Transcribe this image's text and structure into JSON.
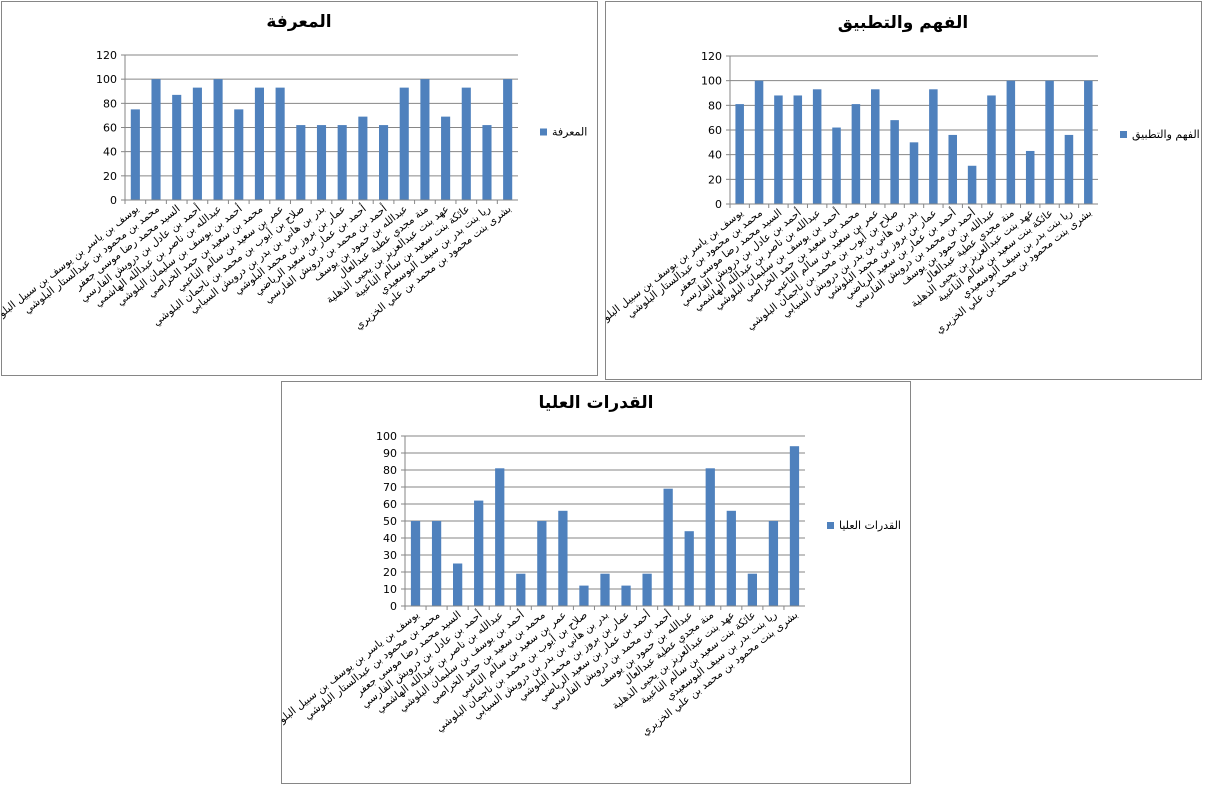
{
  "chart_data": [
    {
      "type": "bar",
      "title": "المعرفة",
      "categories": [
        "يوسف بن ياسر بن يوسف بن سبيل البلوشي",
        "محمد بن محمود بن عبدالستار البلوشي",
        "السيد محمد رضا موسى جعفر",
        "أحمد بن عادل بن درويش الفارسي",
        "عبدالله بن ناصر بن عبدالله الهاشمي",
        "أحمد بن يوسف بن سليمان البلوشي",
        "محمد بن سعيد بن حمد الخراصي",
        "عمر بن سعيد بن سالم الناعبي",
        "صلاح بن أيوب بن محمد بن ناجمان البلوشي",
        "بدر بن هاني بن بدر بن درويش السيابي",
        "عمار بن بروز بن محمد البلوشي",
        "أحمد بن عمار بن سعيد الرياضي",
        "أحمد بن محمد بن درويش الفارسي",
        "عبدالله بن حمود بن يوسف",
        "منة مجدي عطية عبدالعال",
        "عهد بنت عبدالعزيز بن يحيى الذهلية",
        "عائكة بنت سعيد بن سالم الناعبية",
        "ريا بنت بدر بن سيف البوسعيدي",
        "بشرى بنت محمود بن محمد بن علي الخزيري"
      ],
      "series": [
        {
          "name": "المعرفة",
          "color": "#4f81bd",
          "values": [
            75,
            100,
            87,
            93,
            100,
            75,
            93,
            93,
            62,
            62,
            62,
            69,
            62,
            93,
            100,
            69,
            93,
            62,
            100
          ]
        }
      ],
      "ylim": [
        0,
        120
      ],
      "yticks": [
        0,
        20,
        40,
        60,
        80,
        100,
        120
      ],
      "grid": true,
      "legend": "right"
    },
    {
      "type": "bar",
      "title": "الفهم والتطبيق",
      "categories": [
        "يوسف بن ياسر بن يوسف بن سبيل البلوشي",
        "محمد بن محمود بن عبدالستار البلوشي",
        "السيد محمد رضا موسى جعفر",
        "أحمد بن عادل بن درويش الفارسي",
        "عبدالله بن ناصر بن عبدالله الهاشمي",
        "أحمد بن يوسف بن سليمان البلوشي",
        "محمد بن سعيد بن حمد الخراصي",
        "عمر بن سعيد بن سالم الناعبي",
        "صلاح بن أيوب بن محمد بن ناجمان البلوشي",
        "بدر بن هاني بن بدر بن درويش السيابي",
        "عمار بن بروز بن محمد البلوشي",
        "أحمد بن عمار بن سعيد الرياضي",
        "أحمد بن محمد بن درويش الفارسي",
        "عبدالله بن حمود بن يوسف",
        "منة مجدي عطية عبدالعال",
        "عهد بنت عبدالعزيز بن يحيى الذهلية",
        "عائكة بنت سعيد بن سالم الناعبية",
        "ريا بنت بدر بن سيف البوسعيدي",
        "بشرى بنت محمود بن محمد بن علي الخزيري"
      ],
      "series": [
        {
          "name": "الفهم والتطبيق",
          "color": "#4f81bd",
          "values": [
            81,
            100,
            88,
            88,
            93,
            62,
            81,
            93,
            68,
            50,
            93,
            56,
            31,
            88,
            100,
            43,
            100,
            56,
            100
          ]
        }
      ],
      "ylim": [
        0,
        120
      ],
      "yticks": [
        0,
        20,
        40,
        60,
        80,
        100,
        120
      ],
      "grid": true,
      "legend": "right"
    },
    {
      "type": "bar",
      "title": "القدرات العليا",
      "categories": [
        "يوسف بن ياسر بن يوسف بن سبيل البلوشي",
        "محمد بن محمود بن عبدالستار البلوشي",
        "السيد محمد رضا موسى جعفر",
        "أحمد بن عادل بن درويش الفارسي",
        "عبدالله بن ناصر بن عبدالله الهاشمي",
        "أحمد بن يوسف بن سليمان البلوشي",
        "محمد بن سعيد بن حمد الخراصي",
        "عمر بن سعيد بن سالم الناعبي",
        "صلاح بن أيوب بن محمد بن ناجمان البلوشي",
        "بدر بن هاني بن بدر بن درويش السيابي",
        "عمار بن بروز بن محمد البلوشي",
        "أحمد بن عمار بن سعيد الرياضي",
        "أحمد بن محمد بن درويش الفارسي",
        "عبدالله بن حمود بن يوسف",
        "منة مجدي عطية عبدالعال",
        "عهد بنت عبدالعزيز بن يحيى الذهلية",
        "عائكة بنت سعيد بن سالم الناعبية",
        "ريا بنت بدر بن سيف البوسعيدي",
        "بشرى بنت محمود بن محمد بن علي الخزيري"
      ],
      "series": [
        {
          "name": "القدرات العليا",
          "color": "#4f81bd",
          "values": [
            50,
            50,
            25,
            62,
            81,
            19,
            50,
            56,
            12,
            19,
            12,
            19,
            69,
            44,
            81,
            56,
            19,
            50,
            94
          ]
        }
      ],
      "ylim": [
        0,
        100
      ],
      "yticks": [
        0,
        10,
        20,
        30,
        40,
        50,
        60,
        70,
        80,
        90,
        100
      ],
      "grid": true,
      "legend": "right"
    }
  ]
}
